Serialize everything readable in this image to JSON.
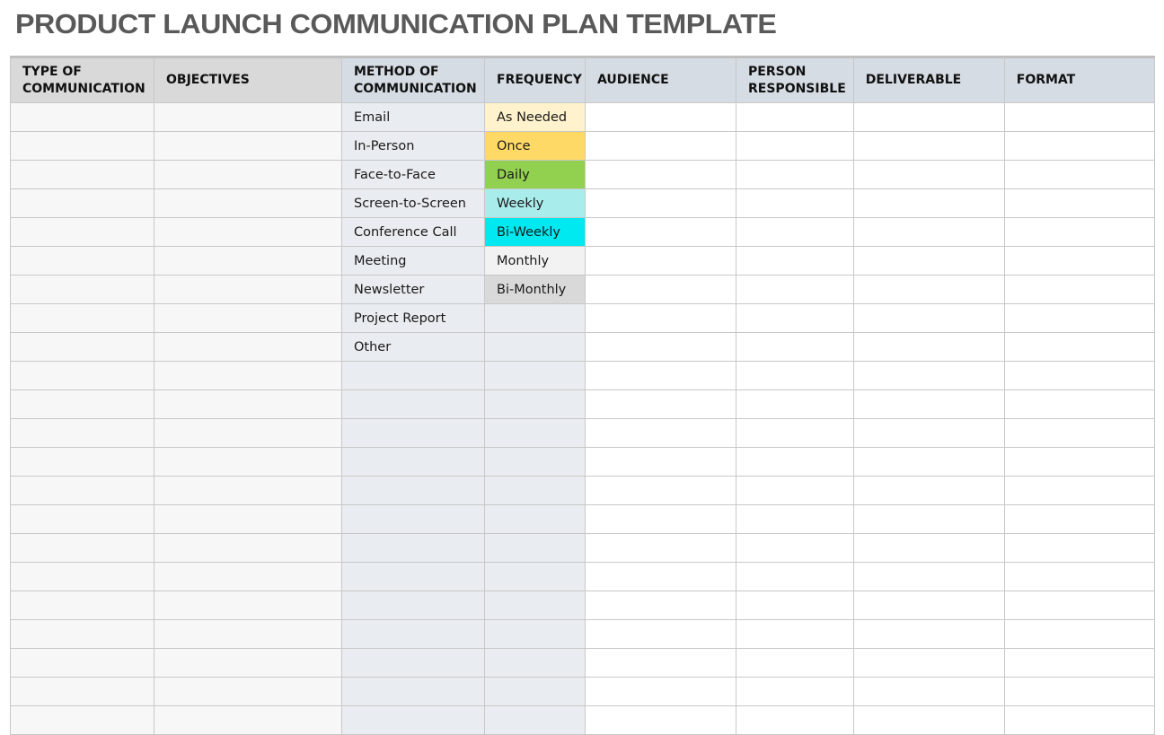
{
  "title": "PRODUCT LAUNCH COMMUNICATION PLAN TEMPLATE",
  "columns": [
    "TYPE OF COMMUNICATION",
    "OBJECTIVES",
    "METHOD OF COMMUNICATION",
    "FREQUENCY",
    "AUDIENCE",
    "PERSON RESPONSIBLE",
    "DELIVERABLE",
    "FORMAT"
  ],
  "methods": [
    "Email",
    "In-Person",
    "Face-to-Face",
    "Screen-to-Screen",
    "Conference Call",
    "Meeting",
    "Newsletter",
    "Project Report",
    "Other"
  ],
  "frequencies": [
    {
      "label": "As Needed",
      "color": "#fff2cc"
    },
    {
      "label": "Once",
      "color": "#ffd966"
    },
    {
      "label": "Daily",
      "color": "#92d050"
    },
    {
      "label": "Weekly",
      "color": "#a9ecec"
    },
    {
      "label": "Bi-Weekly",
      "color": "#00e8f0"
    },
    {
      "label": "Monthly",
      "color": "#f2f2f2"
    },
    {
      "label": "Bi-Monthly",
      "color": "#d9d9d9"
    }
  ]
}
